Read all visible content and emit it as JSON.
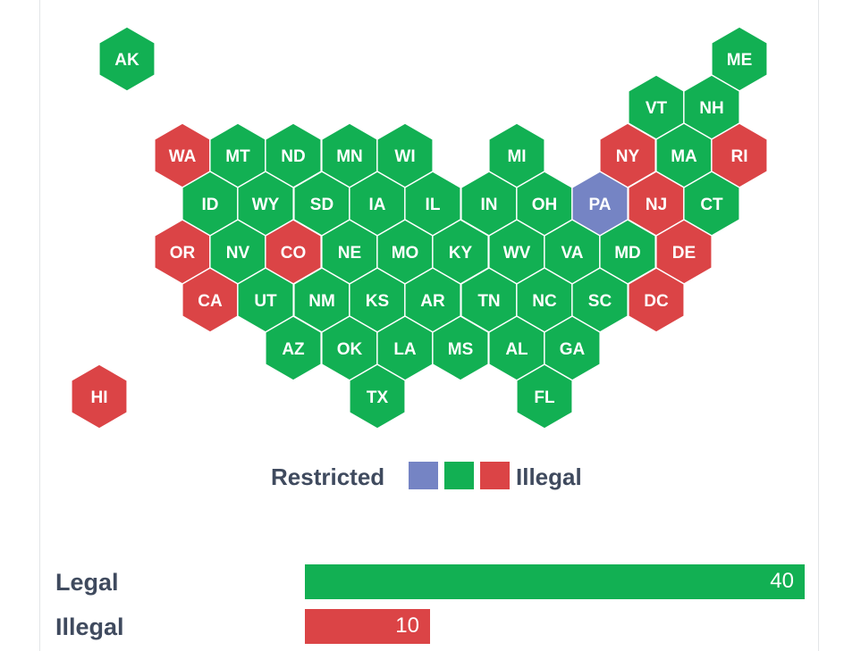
{
  "colors": {
    "legal": "#12b053",
    "illegal": "#db4446",
    "restricted": "#7584c4"
  },
  "legend": {
    "left_label": "Restricted",
    "right_label": "Illegal",
    "swatches": [
      "restricted",
      "legal",
      "illegal"
    ]
  },
  "states": [
    {
      "abbr": "AK",
      "status": "legal"
    },
    {
      "abbr": "ME",
      "status": "legal"
    },
    {
      "abbr": "VT",
      "status": "legal"
    },
    {
      "abbr": "NH",
      "status": "legal"
    },
    {
      "abbr": "WA",
      "status": "illegal"
    },
    {
      "abbr": "MT",
      "status": "legal"
    },
    {
      "abbr": "ND",
      "status": "legal"
    },
    {
      "abbr": "MN",
      "status": "legal"
    },
    {
      "abbr": "WI",
      "status": "legal"
    },
    {
      "abbr": "MI",
      "status": "legal"
    },
    {
      "abbr": "NY",
      "status": "illegal"
    },
    {
      "abbr": "MA",
      "status": "legal"
    },
    {
      "abbr": "RI",
      "status": "illegal"
    },
    {
      "abbr": "ID",
      "status": "legal"
    },
    {
      "abbr": "WY",
      "status": "legal"
    },
    {
      "abbr": "SD",
      "status": "legal"
    },
    {
      "abbr": "IA",
      "status": "legal"
    },
    {
      "abbr": "IL",
      "status": "legal"
    },
    {
      "abbr": "IN",
      "status": "legal"
    },
    {
      "abbr": "OH",
      "status": "legal"
    },
    {
      "abbr": "PA",
      "status": "restricted"
    },
    {
      "abbr": "NJ",
      "status": "illegal"
    },
    {
      "abbr": "CT",
      "status": "legal"
    },
    {
      "abbr": "OR",
      "status": "illegal"
    },
    {
      "abbr": "NV",
      "status": "legal"
    },
    {
      "abbr": "CO",
      "status": "illegal"
    },
    {
      "abbr": "NE",
      "status": "legal"
    },
    {
      "abbr": "MO",
      "status": "legal"
    },
    {
      "abbr": "KY",
      "status": "legal"
    },
    {
      "abbr": "WV",
      "status": "legal"
    },
    {
      "abbr": "VA",
      "status": "legal"
    },
    {
      "abbr": "MD",
      "status": "legal"
    },
    {
      "abbr": "DE",
      "status": "illegal"
    },
    {
      "abbr": "CA",
      "status": "illegal"
    },
    {
      "abbr": "UT",
      "status": "legal"
    },
    {
      "abbr": "NM",
      "status": "legal"
    },
    {
      "abbr": "KS",
      "status": "legal"
    },
    {
      "abbr": "AR",
      "status": "legal"
    },
    {
      "abbr": "TN",
      "status": "legal"
    },
    {
      "abbr": "NC",
      "status": "legal"
    },
    {
      "abbr": "SC",
      "status": "legal"
    },
    {
      "abbr": "DC",
      "status": "illegal"
    },
    {
      "abbr": "AZ",
      "status": "legal"
    },
    {
      "abbr": "OK",
      "status": "legal"
    },
    {
      "abbr": "LA",
      "status": "legal"
    },
    {
      "abbr": "MS",
      "status": "legal"
    },
    {
      "abbr": "AL",
      "status": "legal"
    },
    {
      "abbr": "GA",
      "status": "legal"
    },
    {
      "abbr": "HI",
      "status": "illegal"
    },
    {
      "abbr": "TX",
      "status": "legal"
    },
    {
      "abbr": "FL",
      "status": "legal"
    }
  ],
  "summary": {
    "max": 40,
    "bars": [
      {
        "label": "Legal",
        "value": 40,
        "display": "40",
        "status": "legal"
      },
      {
        "label": "Illegal",
        "value": 10,
        "display": "10",
        "status": "illegal"
      }
    ]
  }
}
